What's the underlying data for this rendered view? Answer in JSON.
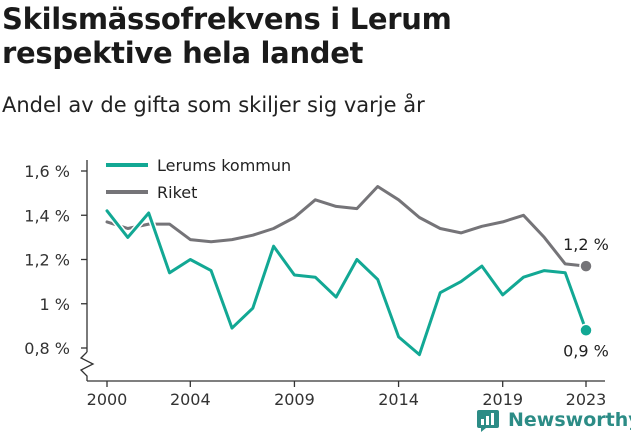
{
  "header": {
    "title": "Skilsmässofrekvens i Lerum respektive hela landet",
    "subtitle": "Andel av de gifta som skiljer sig varje år"
  },
  "brand": {
    "name": "Newsworthy",
    "icon": "newsworthy-logo-icon"
  },
  "colors": {
    "lerum": "#12a894",
    "riket": "#757478",
    "axis": "#333333",
    "brand": "#2c8c86"
  },
  "chart_data": {
    "type": "line",
    "title": "Skilsmässofrekvens i Lerum respektive hela landet",
    "subtitle": "Andel av de gifta som skiljer sig varje år",
    "x": [
      2000,
      2001,
      2002,
      2003,
      2004,
      2005,
      2006,
      2007,
      2008,
      2009,
      2010,
      2011,
      2012,
      2013,
      2014,
      2015,
      2016,
      2017,
      2018,
      2019,
      2020,
      2021,
      2022,
      2023
    ],
    "series": [
      {
        "name": "Lerums kommun",
        "color": "#12a894",
        "values": [
          1.42,
          1.3,
          1.41,
          1.14,
          1.2,
          1.15,
          0.89,
          0.98,
          1.26,
          1.13,
          1.12,
          1.03,
          1.2,
          1.11,
          0.85,
          0.77,
          1.05,
          1.1,
          1.17,
          1.04,
          1.12,
          1.15,
          1.14,
          0.88
        ],
        "end_label": "0,9 %"
      },
      {
        "name": "Riket",
        "color": "#757478",
        "values": [
          1.37,
          1.34,
          1.36,
          1.36,
          1.29,
          1.28,
          1.29,
          1.31,
          1.34,
          1.39,
          1.47,
          1.44,
          1.43,
          1.53,
          1.47,
          1.39,
          1.34,
          1.32,
          1.35,
          1.37,
          1.4,
          1.3,
          1.18,
          1.17
        ],
        "end_label": "1,2 %"
      }
    ],
    "ylim": [
      0.7,
      1.65
    ],
    "yticks": [
      0.8,
      1.0,
      1.2,
      1.4,
      1.6
    ],
    "ytick_labels": [
      "0,8 %",
      "1 %",
      "1,2 %",
      "1,4 %",
      "1,6 %"
    ],
    "xticks": [
      2000,
      2004,
      2009,
      2014,
      2019,
      2023
    ],
    "xtick_labels": [
      "2000",
      "2004",
      "2009",
      "2014",
      "2019",
      "2023"
    ],
    "grid": false,
    "legend": "top-left"
  }
}
